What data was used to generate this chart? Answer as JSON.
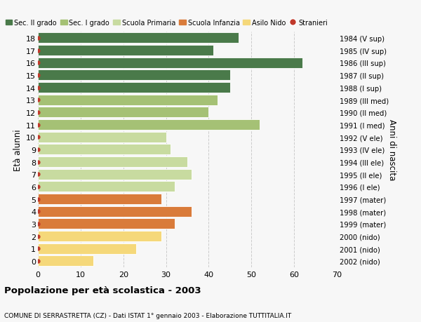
{
  "ages": [
    0,
    1,
    2,
    3,
    4,
    5,
    6,
    7,
    8,
    9,
    10,
    11,
    12,
    13,
    14,
    15,
    16,
    17,
    18
  ],
  "values": [
    13,
    23,
    29,
    32,
    36,
    29,
    32,
    36,
    35,
    31,
    30,
    52,
    40,
    42,
    45,
    45,
    62,
    41,
    47
  ],
  "right_labels": [
    "2002 (nido)",
    "2001 (nido)",
    "2000 (nido)",
    "1999 (mater)",
    "1998 (mater)",
    "1997 (mater)",
    "1996 (I ele)",
    "1995 (II ele)",
    "1994 (III ele)",
    "1993 (IV ele)",
    "1992 (V ele)",
    "1991 (I med)",
    "1990 (II med)",
    "1989 (III med)",
    "1988 (I sup)",
    "1987 (II sup)",
    "1986 (III sup)",
    "1985 (IV sup)",
    "1984 (V sup)"
  ],
  "bar_colors": [
    "#f5d87a",
    "#f5d87a",
    "#f5d87a",
    "#d97b3a",
    "#d97b3a",
    "#d97b3a",
    "#c8dba0",
    "#c8dba0",
    "#c8dba0",
    "#c8dba0",
    "#c8dba0",
    "#a5c175",
    "#a5c175",
    "#a5c175",
    "#4a7a4a",
    "#4a7a4a",
    "#4a7a4a",
    "#4a7a4a",
    "#4a7a4a"
  ],
  "dot_color": "#c0392b",
  "legend_items": [
    {
      "label": "Sec. II grado",
      "color": "#4a7a4a",
      "type": "patch"
    },
    {
      "label": "Sec. I grado",
      "color": "#a5c175",
      "type": "patch"
    },
    {
      "label": "Scuola Primaria",
      "color": "#c8dba0",
      "type": "patch"
    },
    {
      "label": "Scuola Infanzia",
      "color": "#d97b3a",
      "type": "patch"
    },
    {
      "label": "Asilo Nido",
      "color": "#f5d87a",
      "type": "patch"
    },
    {
      "label": "Stranieri",
      "color": "#c0392b",
      "type": "circle"
    }
  ],
  "ylabel": "Età alunni",
  "right_ylabel": "Anni di nascita",
  "title": "Popolazione per età scolastica - 2003",
  "subtitle": "COMUNE DI SERRASTRETTA (CZ) - Dati ISTAT 1° gennaio 2003 - Elaborazione TUTTITALIA.IT",
  "xlim": [
    0,
    70
  ],
  "xticks": [
    0,
    10,
    20,
    30,
    40,
    50,
    60,
    70
  ],
  "bg_color": "#f7f7f7",
  "bar_height": 0.85,
  "grid_color": "#cccccc"
}
